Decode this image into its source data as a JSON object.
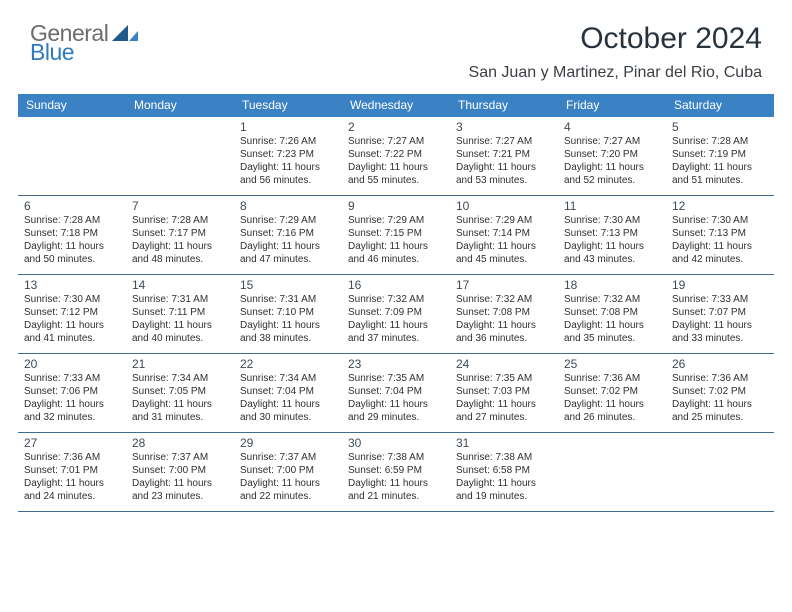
{
  "logo": {
    "word1": "General",
    "word2": "Blue",
    "word1_color": "#6c6c6c",
    "word2_color": "#2f7bbf",
    "shape_color_dark": "#1f5a8a",
    "shape_color_light": "#3b82c4"
  },
  "title": "October 2024",
  "location": "San Juan y Martinez, Pinar del Rio, Cuba",
  "colors": {
    "header_bg": "#3b82c4",
    "header_text": "#ffffff",
    "row_divider": "#426a8f",
    "daynum_color": "#3d4a56",
    "body_text": "#303030",
    "page_bg": "#ffffff"
  },
  "fonts": {
    "title_size": 30,
    "location_size": 16,
    "dayname_size": 12,
    "daynum_size": 12,
    "body_size": 10
  },
  "day_names": [
    "Sunday",
    "Monday",
    "Tuesday",
    "Wednesday",
    "Thursday",
    "Friday",
    "Saturday"
  ],
  "weeks": [
    [
      {
        "num": "",
        "lines": [
          "",
          "",
          "",
          ""
        ]
      },
      {
        "num": "",
        "lines": [
          "",
          "",
          "",
          ""
        ]
      },
      {
        "num": "1",
        "lines": [
          "Sunrise: 7:26 AM",
          "Sunset: 7:23 PM",
          "Daylight: 11 hours",
          "and 56 minutes."
        ]
      },
      {
        "num": "2",
        "lines": [
          "Sunrise: 7:27 AM",
          "Sunset: 7:22 PM",
          "Daylight: 11 hours",
          "and 55 minutes."
        ]
      },
      {
        "num": "3",
        "lines": [
          "Sunrise: 7:27 AM",
          "Sunset: 7:21 PM",
          "Daylight: 11 hours",
          "and 53 minutes."
        ]
      },
      {
        "num": "4",
        "lines": [
          "Sunrise: 7:27 AM",
          "Sunset: 7:20 PM",
          "Daylight: 11 hours",
          "and 52 minutes."
        ]
      },
      {
        "num": "5",
        "lines": [
          "Sunrise: 7:28 AM",
          "Sunset: 7:19 PM",
          "Daylight: 11 hours",
          "and 51 minutes."
        ]
      }
    ],
    [
      {
        "num": "6",
        "lines": [
          "Sunrise: 7:28 AM",
          "Sunset: 7:18 PM",
          "Daylight: 11 hours",
          "and 50 minutes."
        ]
      },
      {
        "num": "7",
        "lines": [
          "Sunrise: 7:28 AM",
          "Sunset: 7:17 PM",
          "Daylight: 11 hours",
          "and 48 minutes."
        ]
      },
      {
        "num": "8",
        "lines": [
          "Sunrise: 7:29 AM",
          "Sunset: 7:16 PM",
          "Daylight: 11 hours",
          "and 47 minutes."
        ]
      },
      {
        "num": "9",
        "lines": [
          "Sunrise: 7:29 AM",
          "Sunset: 7:15 PM",
          "Daylight: 11 hours",
          "and 46 minutes."
        ]
      },
      {
        "num": "10",
        "lines": [
          "Sunrise: 7:29 AM",
          "Sunset: 7:14 PM",
          "Daylight: 11 hours",
          "and 45 minutes."
        ]
      },
      {
        "num": "11",
        "lines": [
          "Sunrise: 7:30 AM",
          "Sunset: 7:13 PM",
          "Daylight: 11 hours",
          "and 43 minutes."
        ]
      },
      {
        "num": "12",
        "lines": [
          "Sunrise: 7:30 AM",
          "Sunset: 7:13 PM",
          "Daylight: 11 hours",
          "and 42 minutes."
        ]
      }
    ],
    [
      {
        "num": "13",
        "lines": [
          "Sunrise: 7:30 AM",
          "Sunset: 7:12 PM",
          "Daylight: 11 hours",
          "and 41 minutes."
        ]
      },
      {
        "num": "14",
        "lines": [
          "Sunrise: 7:31 AM",
          "Sunset: 7:11 PM",
          "Daylight: 11 hours",
          "and 40 minutes."
        ]
      },
      {
        "num": "15",
        "lines": [
          "Sunrise: 7:31 AM",
          "Sunset: 7:10 PM",
          "Daylight: 11 hours",
          "and 38 minutes."
        ]
      },
      {
        "num": "16",
        "lines": [
          "Sunrise: 7:32 AM",
          "Sunset: 7:09 PM",
          "Daylight: 11 hours",
          "and 37 minutes."
        ]
      },
      {
        "num": "17",
        "lines": [
          "Sunrise: 7:32 AM",
          "Sunset: 7:08 PM",
          "Daylight: 11 hours",
          "and 36 minutes."
        ]
      },
      {
        "num": "18",
        "lines": [
          "Sunrise: 7:32 AM",
          "Sunset: 7:08 PM",
          "Daylight: 11 hours",
          "and 35 minutes."
        ]
      },
      {
        "num": "19",
        "lines": [
          "Sunrise: 7:33 AM",
          "Sunset: 7:07 PM",
          "Daylight: 11 hours",
          "and 33 minutes."
        ]
      }
    ],
    [
      {
        "num": "20",
        "lines": [
          "Sunrise: 7:33 AM",
          "Sunset: 7:06 PM",
          "Daylight: 11 hours",
          "and 32 minutes."
        ]
      },
      {
        "num": "21",
        "lines": [
          "Sunrise: 7:34 AM",
          "Sunset: 7:05 PM",
          "Daylight: 11 hours",
          "and 31 minutes."
        ]
      },
      {
        "num": "22",
        "lines": [
          "Sunrise: 7:34 AM",
          "Sunset: 7:04 PM",
          "Daylight: 11 hours",
          "and 30 minutes."
        ]
      },
      {
        "num": "23",
        "lines": [
          "Sunrise: 7:35 AM",
          "Sunset: 7:04 PM",
          "Daylight: 11 hours",
          "and 29 minutes."
        ]
      },
      {
        "num": "24",
        "lines": [
          "Sunrise: 7:35 AM",
          "Sunset: 7:03 PM",
          "Daylight: 11 hours",
          "and 27 minutes."
        ]
      },
      {
        "num": "25",
        "lines": [
          "Sunrise: 7:36 AM",
          "Sunset: 7:02 PM",
          "Daylight: 11 hours",
          "and 26 minutes."
        ]
      },
      {
        "num": "26",
        "lines": [
          "Sunrise: 7:36 AM",
          "Sunset: 7:02 PM",
          "Daylight: 11 hours",
          "and 25 minutes."
        ]
      }
    ],
    [
      {
        "num": "27",
        "lines": [
          "Sunrise: 7:36 AM",
          "Sunset: 7:01 PM",
          "Daylight: 11 hours",
          "and 24 minutes."
        ]
      },
      {
        "num": "28",
        "lines": [
          "Sunrise: 7:37 AM",
          "Sunset: 7:00 PM",
          "Daylight: 11 hours",
          "and 23 minutes."
        ]
      },
      {
        "num": "29",
        "lines": [
          "Sunrise: 7:37 AM",
          "Sunset: 7:00 PM",
          "Daylight: 11 hours",
          "and 22 minutes."
        ]
      },
      {
        "num": "30",
        "lines": [
          "Sunrise: 7:38 AM",
          "Sunset: 6:59 PM",
          "Daylight: 11 hours",
          "and 21 minutes."
        ]
      },
      {
        "num": "31",
        "lines": [
          "Sunrise: 7:38 AM",
          "Sunset: 6:58 PM",
          "Daylight: 11 hours",
          "and 19 minutes."
        ]
      },
      {
        "num": "",
        "lines": [
          "",
          "",
          "",
          ""
        ]
      },
      {
        "num": "",
        "lines": [
          "",
          "",
          "",
          ""
        ]
      }
    ]
  ]
}
